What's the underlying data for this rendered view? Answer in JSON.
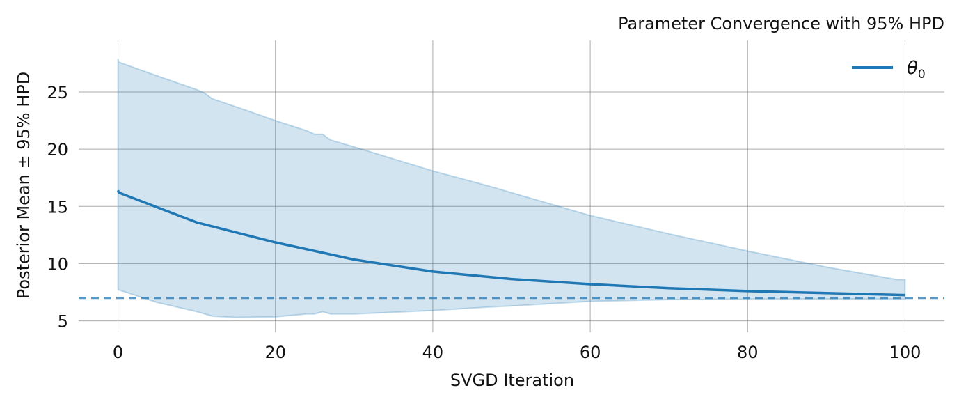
{
  "chart_data": {
    "type": "line",
    "title": "Parameter Convergence with 95% HPD",
    "xlabel": "SVGD Iteration",
    "ylabel": "Posterior Mean ± 95% HPD",
    "xlim": [
      -5,
      105
    ],
    "ylim": [
      4.0,
      29.5
    ],
    "xticks": [
      0,
      20,
      40,
      60,
      80,
      100
    ],
    "yticks": [
      5,
      10,
      15,
      20,
      25
    ],
    "grid": true,
    "legend": {
      "placement": "top-right",
      "entries": [
        "θ0"
      ]
    },
    "colors": {
      "mean": "#1f77b4",
      "band": "#1f77b4",
      "true_line": "#1f77b4",
      "grid": "#888888"
    },
    "true_value": 7.0,
    "series": [
      {
        "name": "θ0",
        "x": [
          0,
          0.1,
          10,
          20,
          30,
          40,
          50,
          60,
          70,
          80,
          90,
          100
        ],
        "mean": [
          16.4,
          16.2,
          13.6,
          11.85,
          10.35,
          9.3,
          8.65,
          8.2,
          7.85,
          7.6,
          7.42,
          7.25
        ]
      }
    ],
    "hpd_band": {
      "x": [
        0,
        0.1,
        5,
        10,
        11,
        12,
        15,
        20,
        24,
        25,
        26,
        27,
        30,
        40,
        47,
        50,
        60,
        70,
        80,
        90,
        99,
        100
      ],
      "upper": [
        27.9,
        27.6,
        26.4,
        25.2,
        24.9,
        24.4,
        23.7,
        22.5,
        21.6,
        21.3,
        21.3,
        20.8,
        20.2,
        18.1,
        16.8,
        16.2,
        14.2,
        12.6,
        11.1,
        9.7,
        8.6,
        8.6
      ],
      "lower": [
        7.7,
        7.7,
        6.6,
        5.8,
        5.6,
        5.4,
        5.3,
        5.35,
        5.6,
        5.6,
        5.8,
        5.6,
        5.6,
        5.9,
        6.2,
        6.3,
        6.7,
        6.85,
        6.9,
        6.9,
        6.9,
        6.9
      ]
    }
  }
}
